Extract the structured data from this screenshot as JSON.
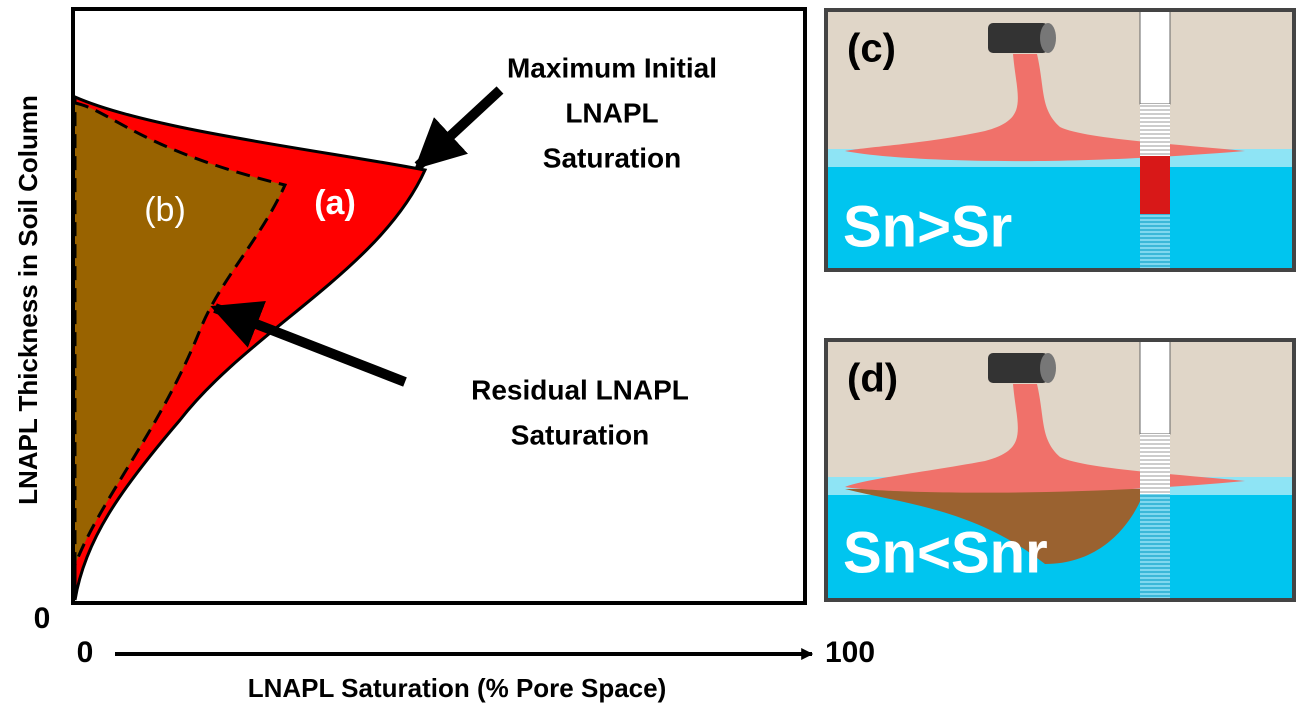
{
  "plot": {
    "y_axis_label": "LNAPL Thickness in Soil Column",
    "y_origin_label": "0",
    "x_start_label": "0",
    "x_end_label": "100",
    "x_axis_label": "LNAPL Saturation (% Pore Space)",
    "region_a_label": "(a)",
    "region_b_label": "(b)",
    "max_annotation": [
      "Maximum Initial",
      "LNAPL",
      "Saturation"
    ],
    "residual_annotation": [
      "Residual LNAPL",
      "Saturation"
    ]
  },
  "panels": [
    {
      "label": "(c)",
      "caption": "Sn>Sr"
    },
    {
      "label": "(d)",
      "caption": "Sn<Snr"
    }
  ]
}
